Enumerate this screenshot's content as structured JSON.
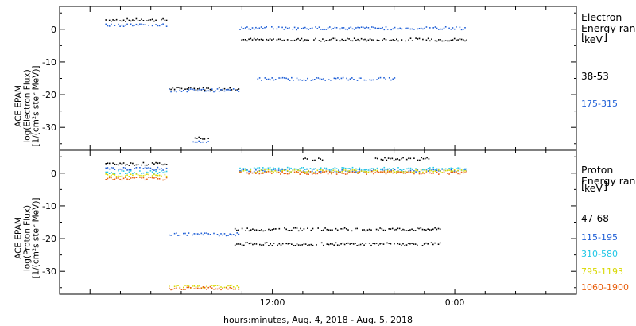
{
  "chart_data": [
    {
      "type": "scatter",
      "panel": "electron",
      "ylabel_lines": [
        "ACE EPAM",
        "log(Electron Flux)",
        "[1/(cm²s ster MeV)]"
      ],
      "yticks": [
        0,
        -10,
        -20,
        -30
      ],
      "ylim": [
        -37,
        7
      ],
      "legend_title_lines": [
        "Electron",
        "Energy ranges"
      ],
      "legend_unit": "keV",
      "series": [
        {
          "name": "38-53",
          "color": "#000000",
          "points": [
            {
              "x_start": "2018-08-04 01:00",
              "x_end": "2018-08-04 05:00",
              "y": 3
            },
            {
              "x_start": "2018-08-04 05:10",
              "x_end": "2018-08-04 09:45",
              "y": -18
            },
            {
              "x_start": "2018-08-04 06:45",
              "x_end": "2018-08-04 07:45",
              "y": -33
            },
            {
              "x_start": "2018-08-04 09:50",
              "x_end": "2018-08-05 00:45",
              "y": -3
            }
          ]
        },
        {
          "name": "175-315",
          "color": "#1f5fd6",
          "points": [
            {
              "x_start": "2018-08-04 01:00",
              "x_end": "2018-08-04 05:00",
              "y": 1.5
            },
            {
              "x_start": "2018-08-04 05:10",
              "x_end": "2018-08-04 09:45",
              "y": -18.5
            },
            {
              "x_start": "2018-08-04 06:45",
              "x_end": "2018-08-04 07:45",
              "y": -34
            },
            {
              "x_start": "2018-08-04 09:50",
              "x_end": "2018-08-05 00:45",
              "y": 0.5
            },
            {
              "x_start": "2018-08-04 11:00",
              "x_end": "2018-08-04 20:00",
              "y": -15
            }
          ]
        }
      ]
    },
    {
      "type": "scatter",
      "panel": "proton",
      "ylabel_lines": [
        "ACE EPAM",
        "log(Proton Flux)",
        "[1/(cm²s ster MeV)]"
      ],
      "yticks": [
        0,
        -10,
        -20,
        -30
      ],
      "ylim": [
        -37,
        7
      ],
      "legend_title_lines": [
        "Proton",
        "Energy ranges"
      ],
      "legend_unit": "keV",
      "series": [
        {
          "name": "47-68",
          "color": "#000000",
          "points": [
            {
              "x_start": "2018-08-04 01:00",
              "x_end": "2018-08-04 05:00",
              "y": 3
            },
            {
              "x_start": "2018-08-04 14:00",
              "x_end": "2018-08-04 15:15",
              "y": 4.5
            },
            {
              "x_start": "2018-08-04 18:45",
              "x_end": "2018-08-04 22:15",
              "y": 4.5
            },
            {
              "x_start": "2018-08-04 09:30",
              "x_end": "2018-08-04 23:00",
              "y": -17
            },
            {
              "x_start": "2018-08-04 09:30",
              "x_end": "2018-08-04 23:00",
              "y": -21.5
            }
          ]
        },
        {
          "name": "115-195",
          "color": "#1f5fd6",
          "points": [
            {
              "x_start": "2018-08-04 01:00",
              "x_end": "2018-08-04 05:00",
              "y": 1.5
            },
            {
              "x_start": "2018-08-04 05:10",
              "x_end": "2018-08-04 09:45",
              "y": -18.5
            },
            {
              "x_start": "2018-08-04 09:50",
              "x_end": "2018-08-05 00:45",
              "y": 1
            }
          ]
        },
        {
          "name": "310-580",
          "color": "#22c7e6",
          "points": [
            {
              "x_start": "2018-08-04 01:00",
              "x_end": "2018-08-04 05:00",
              "y": 0.5
            },
            {
              "x_start": "2018-08-04 09:50",
              "x_end": "2018-08-05 00:45",
              "y": 1.5
            }
          ]
        },
        {
          "name": "795-1193",
          "color": "#d8d800",
          "points": [
            {
              "x_start": "2018-08-04 01:00",
              "x_end": "2018-08-04 05:00",
              "y": -0.5
            },
            {
              "x_start": "2018-08-04 05:10",
              "x_end": "2018-08-04 09:45",
              "y": -34.5
            },
            {
              "x_start": "2018-08-04 09:50",
              "x_end": "2018-08-05 00:45",
              "y": 0.8
            }
          ]
        },
        {
          "name": "1060-1900",
          "color": "#e86010",
          "points": [
            {
              "x_start": "2018-08-04 01:00",
              "x_end": "2018-08-04 05:00",
              "y": -1.5
            },
            {
              "x_start": "2018-08-04 05:10",
              "x_end": "2018-08-04 09:45",
              "y": -35
            },
            {
              "x_start": "2018-08-04 09:50",
              "x_end": "2018-08-05 00:45",
              "y": 0.3
            }
          ]
        }
      ]
    }
  ],
  "x_axis": {
    "label": "hours:minutes, Aug.  4, 2018 - Aug.  5, 2018",
    "range": [
      "2018-08-03 22:00",
      "2018-08-05 08:00"
    ],
    "tick_labels": [
      "12:00",
      "0:00"
    ]
  }
}
